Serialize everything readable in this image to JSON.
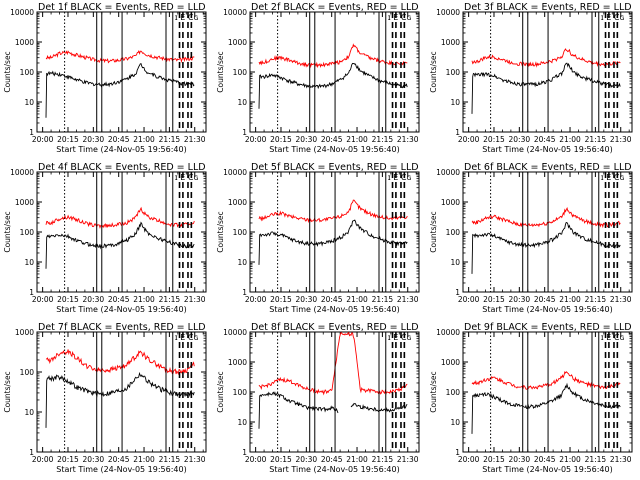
{
  "figure": {
    "type": "line",
    "rows": 3,
    "cols": 3,
    "xlabel": "Start Time (24-Nov-05 19:56:40)",
    "ylabel": "Counts/sec",
    "x_ticks": [
      "20:00",
      "20:15",
      "20:30",
      "20:45",
      "21:00",
      "21:15",
      "21:30"
    ],
    "y_ticks": [
      "1",
      "10",
      "100",
      "1000",
      "10000"
    ],
    "series_colors": {
      "events": "#000000",
      "lld": "#ff0000"
    },
    "y_scale": "log",
    "corner_marks": "ɪ E Cɢ"
  },
  "chart_data": [
    {
      "title": "Det 1f BLACK = Events, RED = LLD",
      "type": "line",
      "xlim": [
        "19:56:40",
        "21:36:40"
      ],
      "ylim": [
        1,
        10000
      ],
      "x": [
        "20:05",
        "20:10",
        "20:15",
        "20:20",
        "20:25",
        "20:30",
        "20:35",
        "20:40",
        "20:45",
        "20:50",
        "20:55",
        "20:58",
        "21:02",
        "21:08",
        "21:14",
        "21:20",
        "21:25",
        "21:30"
      ],
      "series": [
        {
          "name": "LLD",
          "values": [
            300,
            420,
            460,
            370,
            310,
            260,
            240,
            235,
            250,
            280,
            340,
            520,
            380,
            310,
            270,
            250,
            270,
            300
          ]
        },
        {
          "name": "Events",
          "values": [
            90,
            85,
            70,
            55,
            45,
            40,
            38,
            40,
            48,
            60,
            90,
            180,
            100,
            70,
            55,
            45,
            40,
            40
          ]
        }
      ],
      "data_start": "20:02",
      "events_min": 3,
      "dotted_x": [
        "20:13"
      ],
      "solid_x": [
        "20:32",
        "20:35",
        "20:47",
        "21:13",
        "21:17"
      ],
      "dashed_x": [
        "21:21",
        "21:23",
        "21:26",
        "21:28"
      ],
      "gaps": []
    },
    {
      "title": "Det 2f BLACK = Events, RED = LLD",
      "type": "line",
      "xlim": [
        "19:56:40",
        "21:36:40"
      ],
      "ylim": [
        1,
        10000
      ],
      "x": [
        "20:05",
        "20:10",
        "20:15",
        "20:20",
        "20:25",
        "20:30",
        "20:35",
        "20:40",
        "20:45",
        "20:50",
        "20:55",
        "20:58",
        "21:02",
        "21:08",
        "21:14",
        "21:20",
        "21:25",
        "21:30"
      ],
      "series": [
        {
          "name": "LLD",
          "values": [
            210,
            280,
            300,
            250,
            200,
            180,
            170,
            175,
            190,
            220,
            330,
            800,
            420,
            290,
            230,
            200,
            190,
            200
          ]
        },
        {
          "name": "Events",
          "values": [
            70,
            80,
            65,
            50,
            40,
            35,
            32,
            34,
            40,
            55,
            90,
            220,
            110,
            70,
            50,
            40,
            35,
            35
          ]
        }
      ],
      "data_start": "20:02",
      "events_min": 6,
      "dotted_x": [
        "20:13"
      ],
      "solid_x": [
        "20:32",
        "20:35",
        "20:47",
        "21:13",
        "21:17"
      ],
      "dashed_x": [
        "21:21",
        "21:23",
        "21:26",
        "21:28"
      ],
      "gaps": []
    },
    {
      "title": "Det 3f BLACK = Events, RED = LLD",
      "type": "line",
      "xlim": [
        "19:56:40",
        "21:36:40"
      ],
      "ylim": [
        1,
        10000
      ],
      "x": [
        "20:05",
        "20:10",
        "20:15",
        "20:20",
        "20:25",
        "20:30",
        "20:35",
        "20:40",
        "20:45",
        "20:50",
        "20:55",
        "20:58",
        "21:02",
        "21:08",
        "21:14",
        "21:20",
        "21:25",
        "21:30"
      ],
      "series": [
        {
          "name": "LLD",
          "values": [
            220,
            300,
            320,
            260,
            210,
            190,
            180,
            180,
            200,
            240,
            330,
            600,
            350,
            250,
            200,
            180,
            190,
            220
          ]
        },
        {
          "name": "Events",
          "values": [
            80,
            85,
            75,
            55,
            45,
            40,
            38,
            40,
            45,
            60,
            90,
            200,
            100,
            65,
            50,
            40,
            35,
            38
          ]
        }
      ],
      "data_start": "20:02",
      "events_min": 4,
      "dotted_x": [
        "20:13"
      ],
      "solid_x": [
        "20:32",
        "20:35",
        "20:47",
        "21:13",
        "21:17"
      ],
      "dashed_x": [
        "21:21",
        "21:23",
        "21:26",
        "21:28"
      ],
      "gaps": []
    },
    {
      "title": "Det 4f BLACK = Events, RED = LLD",
      "type": "line",
      "xlim": [
        "19:56:40",
        "21:36:40"
      ],
      "ylim": [
        1,
        10000
      ],
      "x": [
        "20:05",
        "20:10",
        "20:15",
        "20:20",
        "20:25",
        "20:30",
        "20:35",
        "20:40",
        "20:45",
        "20:50",
        "20:55",
        "20:58",
        "21:02",
        "21:08",
        "21:14",
        "21:20",
        "21:25",
        "21:30"
      ],
      "series": [
        {
          "name": "LLD",
          "values": [
            200,
            280,
            320,
            260,
            200,
            170,
            160,
            165,
            180,
            210,
            300,
            580,
            330,
            240,
            190,
            170,
            180,
            210
          ]
        },
        {
          "name": "Events",
          "values": [
            70,
            80,
            70,
            52,
            42,
            36,
            34,
            36,
            42,
            55,
            85,
            190,
            95,
            62,
            48,
            38,
            34,
            36
          ]
        }
      ],
      "data_start": "20:02",
      "events_min": 6,
      "dotted_x": [
        "20:13"
      ],
      "solid_x": [
        "20:32",
        "20:35",
        "20:47",
        "21:13",
        "21:17"
      ],
      "dashed_x": [
        "21:21",
        "21:23",
        "21:26",
        "21:28"
      ],
      "gaps": []
    },
    {
      "title": "Det 5f BLACK = Events, RED = LLD",
      "type": "line",
      "xlim": [
        "19:56:40",
        "21:36:40"
      ],
      "ylim": [
        1,
        10000
      ],
      "x": [
        "20:05",
        "20:10",
        "20:15",
        "20:20",
        "20:25",
        "20:30",
        "20:35",
        "20:40",
        "20:45",
        "20:50",
        "20:55",
        "20:58",
        "21:02",
        "21:08",
        "21:14",
        "21:20",
        "21:25",
        "21:30"
      ],
      "series": [
        {
          "name": "LLD",
          "values": [
            290,
            380,
            420,
            340,
            290,
            260,
            250,
            255,
            280,
            330,
            480,
            1100,
            600,
            400,
            320,
            280,
            300,
            330
          ]
        },
        {
          "name": "Events",
          "values": [
            80,
            90,
            80,
            60,
            48,
            42,
            40,
            42,
            50,
            65,
            100,
            260,
            130,
            80,
            58,
            46,
            42,
            44
          ]
        }
      ],
      "data_start": "20:02",
      "events_min": 8,
      "dotted_x": [
        "20:13"
      ],
      "solid_x": [
        "20:32",
        "20:35",
        "20:47",
        "21:13",
        "21:17"
      ],
      "dashed_x": [
        "21:21",
        "21:23",
        "21:26",
        "21:28"
      ],
      "gaps": []
    },
    {
      "title": "Det 6f BLACK = Events, RED = LLD",
      "type": "line",
      "xlim": [
        "19:56:40",
        "21:36:40"
      ],
      "ylim": [
        1,
        10000
      ],
      "x": [
        "20:05",
        "20:10",
        "20:15",
        "20:20",
        "20:25",
        "20:30",
        "20:35",
        "20:40",
        "20:45",
        "20:50",
        "20:55",
        "20:58",
        "21:02",
        "21:08",
        "21:14",
        "21:20",
        "21:25",
        "21:30"
      ],
      "series": [
        {
          "name": "LLD",
          "values": [
            210,
            290,
            330,
            270,
            210,
            180,
            170,
            175,
            190,
            230,
            320,
            620,
            340,
            240,
            190,
            170,
            180,
            210
          ]
        },
        {
          "name": "Events",
          "values": [
            75,
            85,
            75,
            55,
            44,
            38,
            36,
            38,
            44,
            58,
            90,
            200,
            100,
            62,
            48,
            38,
            34,
            36
          ]
        }
      ],
      "data_start": "20:02",
      "events_min": 4,
      "dotted_x": [
        "20:13"
      ],
      "solid_x": [
        "20:32",
        "20:35",
        "20:47",
        "21:13",
        "21:17"
      ],
      "dashed_x": [
        "21:21",
        "21:23",
        "21:26",
        "21:28"
      ],
      "gaps": []
    },
    {
      "title": "Det 7f BLACK = Events, RED = LLD",
      "type": "line",
      "xlim": [
        "19:56:40",
        "21:36:40"
      ],
      "ylim": [
        1,
        1000
      ],
      "x": [
        "20:05",
        "20:10",
        "20:15",
        "20:20",
        "20:25",
        "20:30",
        "20:35",
        "20:40",
        "20:45",
        "20:50",
        "20:55",
        "20:58",
        "21:02",
        "21:08",
        "21:14",
        "21:20",
        "21:25",
        "21:30"
      ],
      "series": [
        {
          "name": "LLD",
          "values": [
            200,
            300,
            330,
            230,
            150,
            120,
            110,
            115,
            130,
            150,
            250,
            320,
            220,
            150,
            110,
            100,
            110,
            160
          ]
        },
        {
          "name": "Events",
          "values": [
            70,
            75,
            60,
            42,
            35,
            30,
            28,
            30,
            34,
            40,
            70,
            90,
            60,
            40,
            32,
            28,
            28,
            32
          ]
        }
      ],
      "data_start": "20:02",
      "events_min": 4,
      "dotted_x": [
        "20:13"
      ],
      "solid_x": [
        "20:32",
        "20:35",
        "20:47",
        "21:13",
        "21:17"
      ],
      "dashed_x": [
        "21:21",
        "21:23",
        "21:26",
        "21:28"
      ],
      "gaps": []
    },
    {
      "title": "Det 8f BLACK = Events, RED = LLD",
      "type": "line",
      "xlim": [
        "19:56:40",
        "21:36:40"
      ],
      "ylim": [
        1,
        10000
      ],
      "x": [
        "20:05",
        "20:10",
        "20:15",
        "20:20",
        "20:25",
        "20:30",
        "20:35",
        "20:40",
        "20:45",
        "20:50",
        "20:55",
        "20:58",
        "21:02",
        "21:08",
        "21:14",
        "21:20",
        "21:25",
        "21:30"
      ],
      "series": [
        {
          "name": "LLD",
          "values": [
            150,
            200,
            260,
            230,
            180,
            130,
            110,
            100,
            110,
            9000,
            9000,
            8000,
            120,
            110,
            100,
            100,
            120,
            170
          ]
        },
        {
          "name": "Events",
          "values": [
            80,
            90,
            75,
            50,
            40,
            30,
            28,
            26,
            30,
            20,
            30,
            40,
            32,
            28,
            25,
            25,
            28,
            35
          ]
        }
      ],
      "data_start": "20:02",
      "events_min": 6,
      "dotted_x": [
        "20:13"
      ],
      "solid_x": [
        "20:32",
        "20:35",
        "20:47",
        "21:13",
        "21:17"
      ],
      "dashed_x": [
        "21:21",
        "21:23",
        "21:26",
        "21:28"
      ],
      "gaps": [
        [
          "20:49",
          "20:56"
        ]
      ]
    },
    {
      "title": "Det 9f BLACK = Events, RED = LLD",
      "type": "line",
      "xlim": [
        "19:56:40",
        "21:36:40"
      ],
      "ylim": [
        1,
        10000
      ],
      "x": [
        "20:05",
        "20:10",
        "20:15",
        "20:20",
        "20:25",
        "20:30",
        "20:35",
        "20:40",
        "20:45",
        "20:50",
        "20:55",
        "20:58",
        "21:02",
        "21:08",
        "21:14",
        "21:20",
        "21:25",
        "21:30"
      ],
      "series": [
        {
          "name": "LLD",
          "values": [
            200,
            260,
            300,
            230,
            180,
            150,
            140,
            145,
            160,
            200,
            300,
            500,
            280,
            200,
            160,
            140,
            160,
            190
          ]
        },
        {
          "name": "Events",
          "values": [
            75,
            85,
            70,
            50,
            40,
            34,
            32,
            34,
            40,
            52,
            80,
            170,
            90,
            58,
            44,
            36,
            32,
            34
          ]
        }
      ],
      "data_start": "20:02",
      "events_min": 4,
      "dotted_x": [
        "20:13"
      ],
      "solid_x": [
        "20:32",
        "20:35",
        "20:47",
        "21:13",
        "21:17"
      ],
      "dashed_x": [
        "21:21",
        "21:23",
        "21:26",
        "21:28"
      ],
      "gaps": []
    }
  ]
}
